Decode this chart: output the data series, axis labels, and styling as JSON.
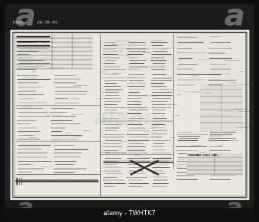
{
  "bg_outer": "#0f0f0f",
  "bg_dark_border": "#1c1c1c",
  "bg_paper": "#d8d8d0",
  "bg_paper_light": "#e8e8e0",
  "line_dark": "#222222",
  "line_med": "#444444",
  "line_light": "#777777",
  "alamy_label": "alamy - TWHTK7",
  "header_text": "HAER     IN-39-65",
  "watermark_a_color": "#aaaaaa",
  "bottom_label_fg": "#ffffff",
  "bottom_bar_color": "#111111",
  "vincennes_text": "VINCENNES STEEL CORP.",
  "bottom_text": "alamy - TWHTK7"
}
